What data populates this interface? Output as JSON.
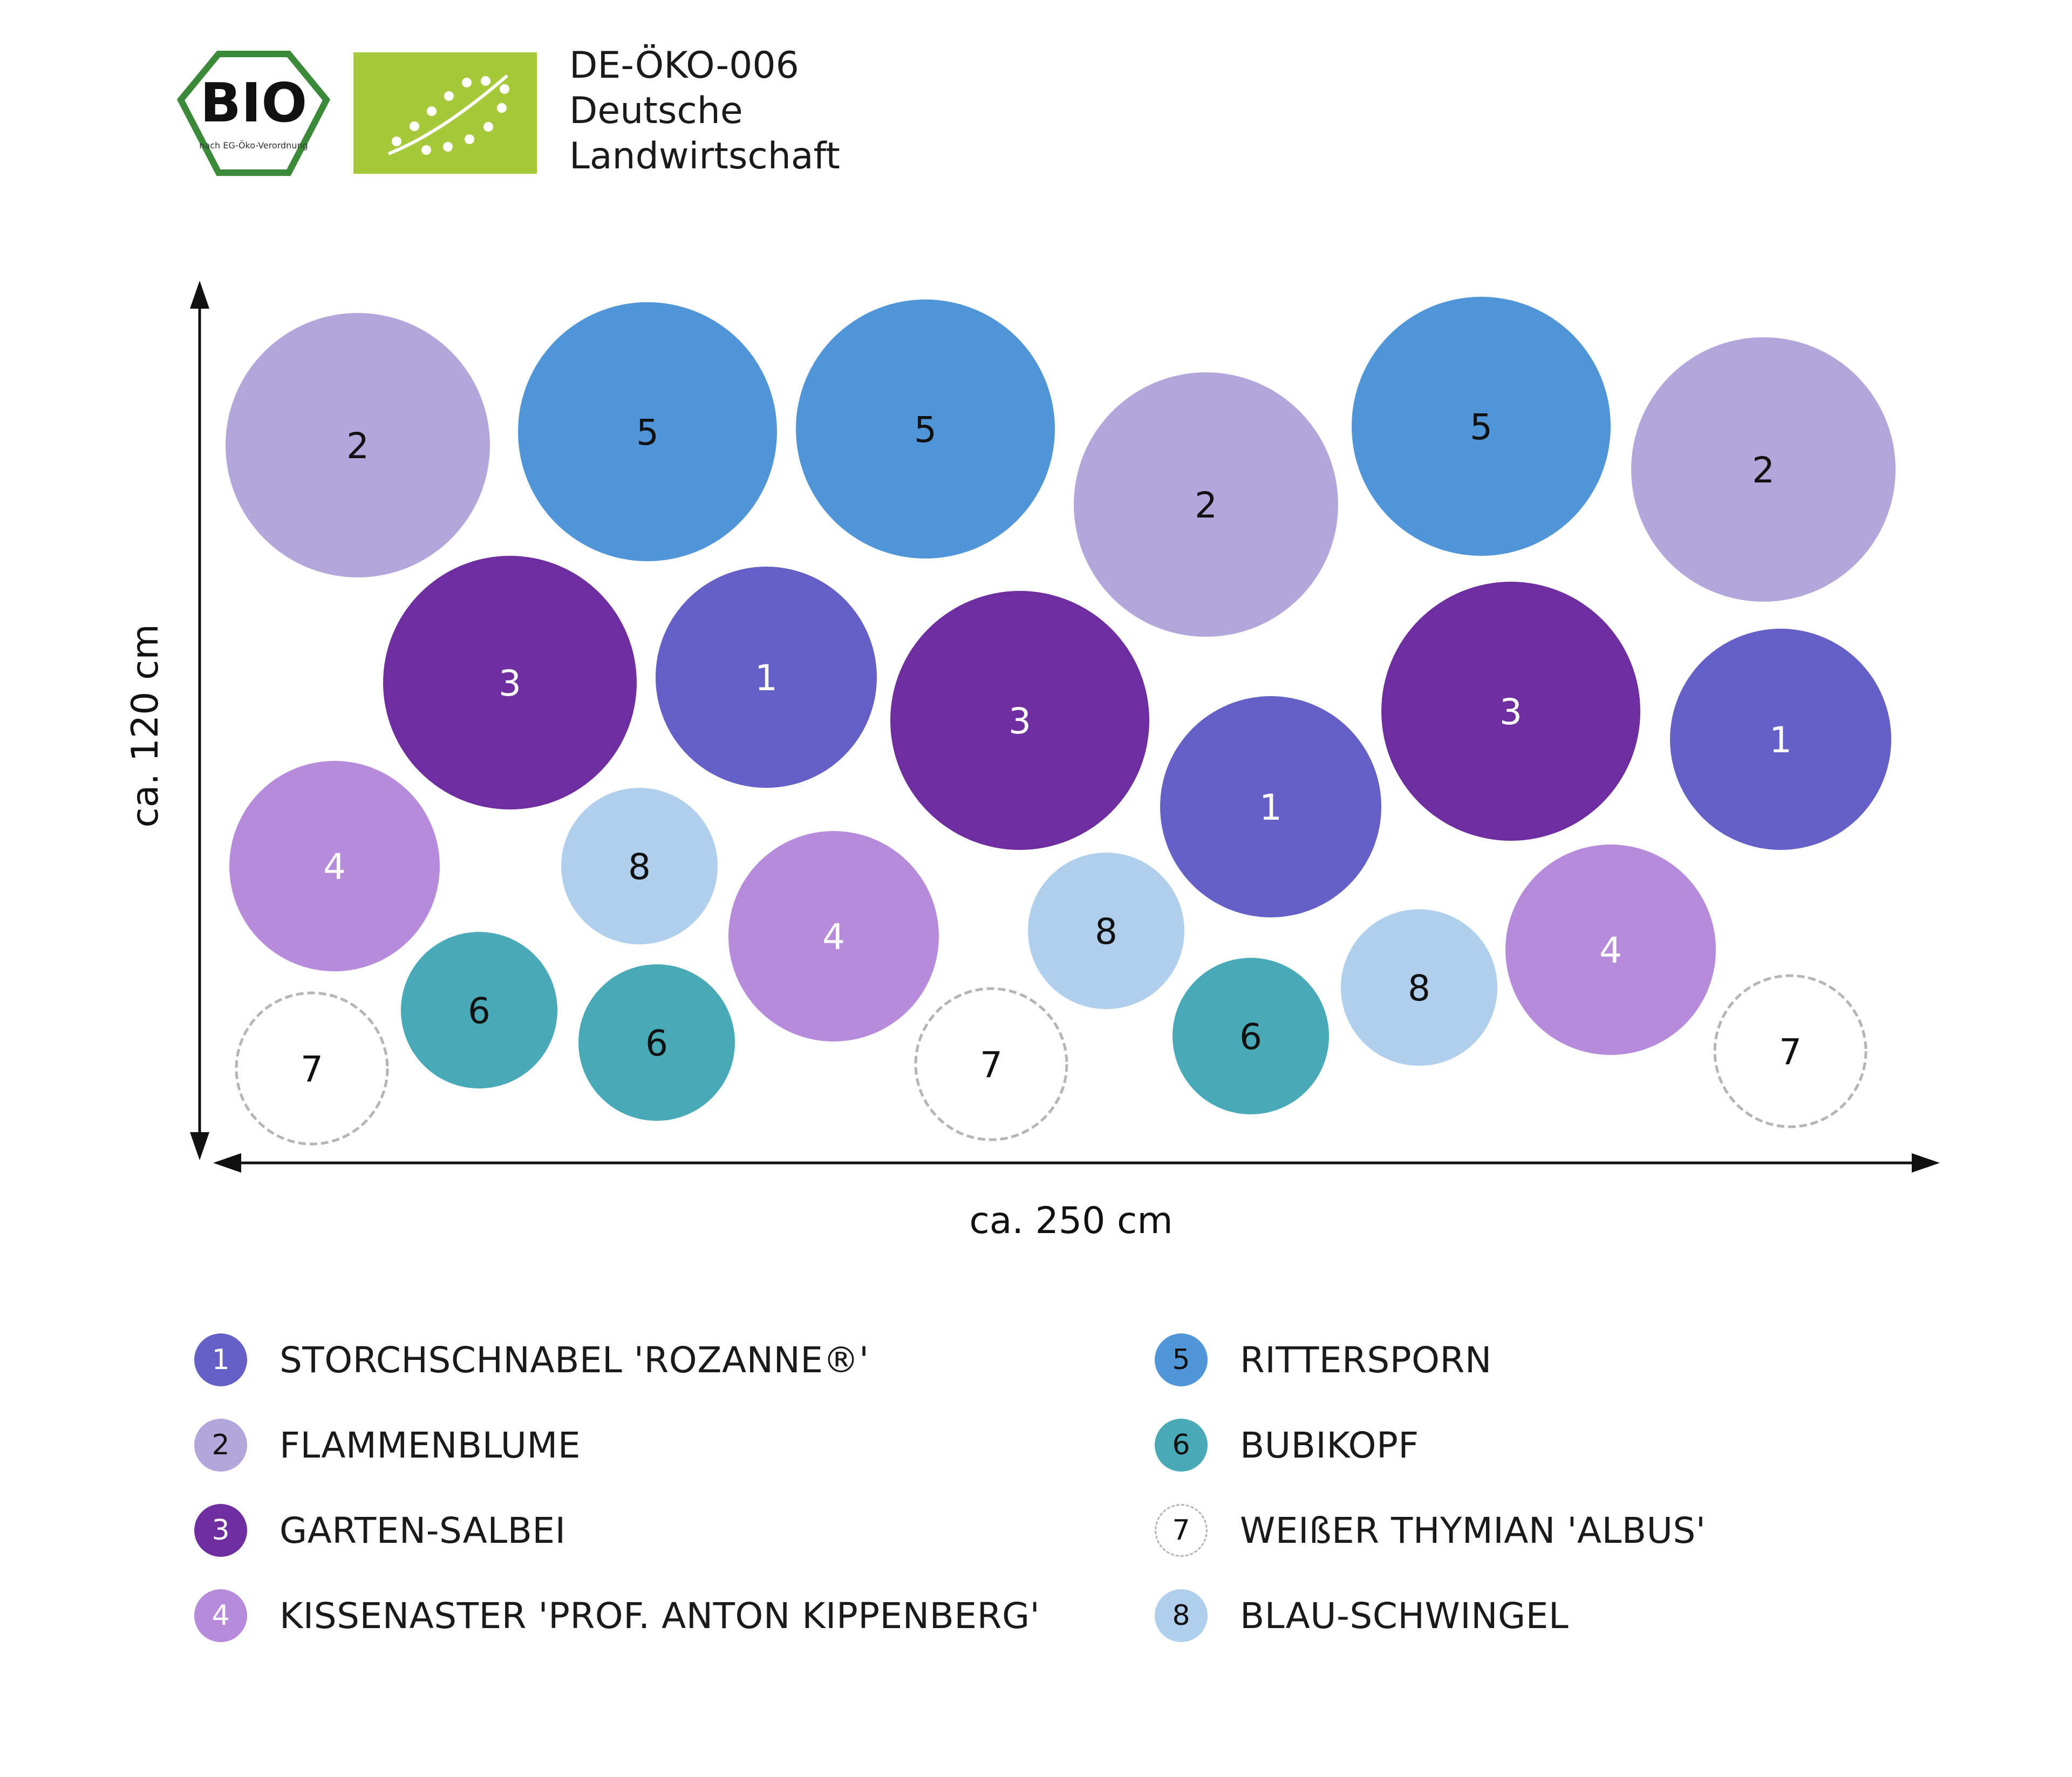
{
  "header": {
    "bio_seal_text": "BIO",
    "bio_seal_small_text": "nach EG-Öko-Verordnung",
    "certificate_lines": [
      "DE-ÖKO-006",
      "Deutsche",
      "Landwirtschaft"
    ]
  },
  "dimensions": {
    "height_label": "ca. 120 cm",
    "width_label": "ca. 250 cm"
  },
  "colors": {
    "1": "#6460c8",
    "2": "#b3a6da",
    "3": "#6e2ea0",
    "4": "#b78bdb",
    "5": "#5095d8",
    "6": "#47aab6",
    "7": "#ffffff",
    "8": "#b0cfec",
    "eu_leaf": "#a6c93a",
    "bio_green": "#3a8a3a"
  },
  "legend": [
    {
      "num": "1",
      "label": "STORCHSCHNABEL 'ROZANNE®'"
    },
    {
      "num": "2",
      "label": "FLAMMENBLUME"
    },
    {
      "num": "3",
      "label": "GARTEN-SALBEI"
    },
    {
      "num": "4",
      "label": "KISSENASTER 'PROF. ANTON KIPPENBERG'"
    },
    {
      "num": "5",
      "label": "RITTERSPORN"
    },
    {
      "num": "6",
      "label": "BUBIKOPF"
    },
    {
      "num": "7",
      "label": "WEIßER THYMIAN 'ALBUS'"
    },
    {
      "num": "8",
      "label": "BLAU-SCHWINGEL"
    }
  ],
  "plants": [
    "2",
    "5",
    "5",
    "2",
    "5",
    "2",
    "3",
    "1",
    "3",
    "1",
    "3",
    "1",
    "4",
    "8",
    "4",
    "8",
    "8",
    "4",
    "6",
    "6",
    "6",
    "7",
    "7",
    "7"
  ]
}
